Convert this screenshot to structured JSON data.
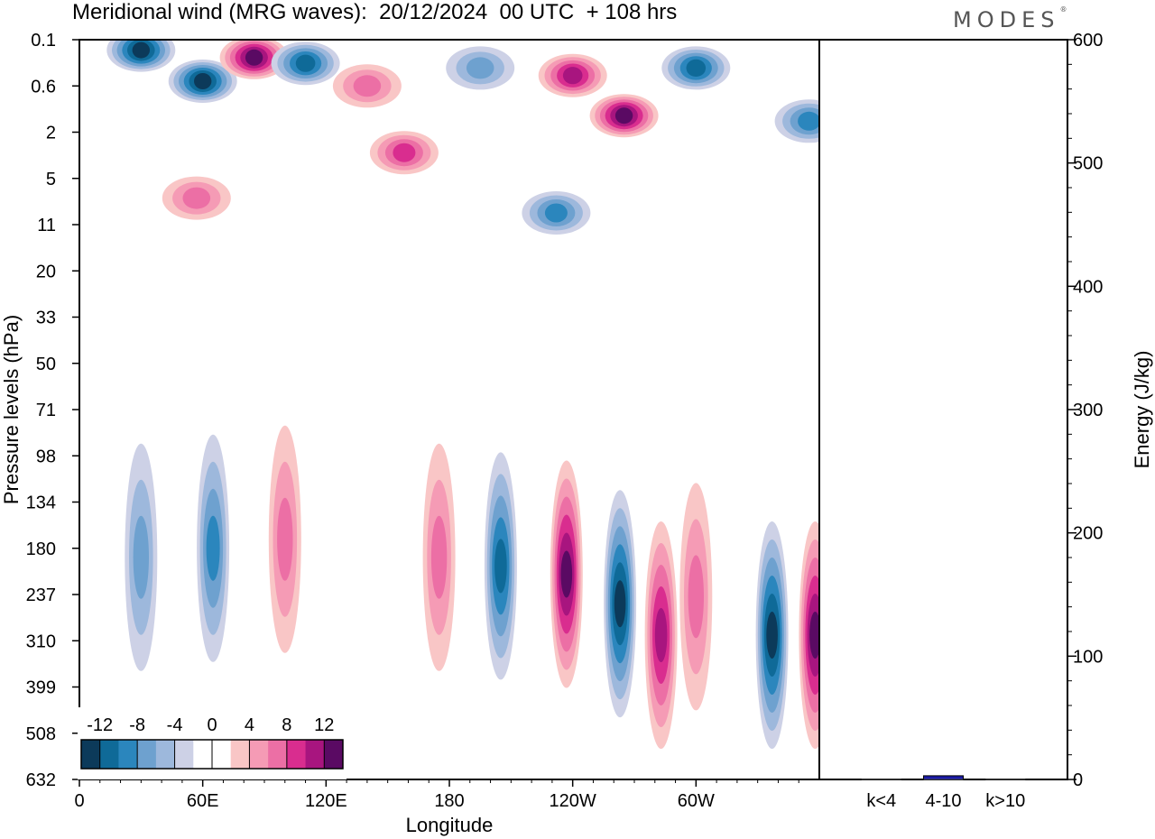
{
  "title": "Meridional wind (MRG waves):  20/12/2024  00 UTC  + 108 hrs",
  "brand": "MODES",
  "brand_mark": "®",
  "chart_data": [
    {
      "type": "heatmap",
      "title": "Meridional wind (MRG waves):  20/12/2024  00 UTC  + 108 hrs",
      "xlabel": "Longitude",
      "ylabel": "Pressure levels (hPa)",
      "x_ticks": [
        "0",
        "60E",
        "120E",
        "180",
        "120W",
        "60W"
      ],
      "y_ticks": [
        "0.1",
        "0.6",
        "2",
        "5",
        "11",
        "20",
        "33",
        "50",
        "71",
        "98",
        "134",
        "180",
        "237",
        "310",
        "399",
        "508",
        "632"
      ],
      "colorbar": {
        "labels": [
          "-12",
          "-8",
          "-4",
          "0",
          "4",
          "8",
          "12"
        ],
        "colors": [
          "#0c3a5a",
          "#0f6a98",
          "#2b86bd",
          "#6ea1cf",
          "#9db8dc",
          "#cdd1e6",
          "#ffffff",
          "#ffffff",
          "#f9c6c6",
          "#f59bb5",
          "#ec6fa5",
          "#d92d8f",
          "#a8157f",
          "#5a0a63"
        ]
      },
      "features": [
        {
          "lon": 30,
          "level": 0.15,
          "value": -12
        },
        {
          "lon": 60,
          "level": 0.5,
          "value": -11
        },
        {
          "lon": 85,
          "level": 0.2,
          "value": 14
        },
        {
          "lon": 110,
          "level": 0.25,
          "value": -9
        },
        {
          "lon": 140,
          "level": 0.6,
          "value": 6
        },
        {
          "lon": 158,
          "level": 3,
          "value": 7
        },
        {
          "lon": 195,
          "level": 0.3,
          "value": -5
        },
        {
          "lon": 240,
          "level": 0.4,
          "value": 10
        },
        {
          "lon": 265,
          "level": 1.3,
          "value": 11
        },
        {
          "lon": 300,
          "level": 0.3,
          "value": -10
        },
        {
          "lon": 355,
          "level": 1.5,
          "value": -7
        },
        {
          "lon": 57,
          "level": 7,
          "value": 5
        },
        {
          "lon": 232,
          "level": 9,
          "value": -7
        },
        {
          "lon": 30,
          "level": 190,
          "value": -5
        },
        {
          "lon": 65,
          "level": 180,
          "value": -7
        },
        {
          "lon": 100,
          "level": 170,
          "value": 6
        },
        {
          "lon": 175,
          "level": 190,
          "value": 5
        },
        {
          "lon": 205,
          "level": 200,
          "value": -9
        },
        {
          "lon": 237,
          "level": 210,
          "value": 14
        },
        {
          "lon": 263,
          "level": 250,
          "value": -12
        },
        {
          "lon": 283,
          "level": 300,
          "value": 10
        },
        {
          "lon": 300,
          "level": 240,
          "value": 5
        },
        {
          "lon": 337,
          "level": 300,
          "value": -14
        },
        {
          "lon": 358,
          "level": 300,
          "value": 12
        }
      ]
    },
    {
      "type": "bar",
      "ylabel": "Energy (J/kg)",
      "categories": [
        "k<4",
        "4-10",
        "k>10"
      ],
      "values": [
        0,
        3,
        0
      ],
      "ylim": [
        0,
        600
      ],
      "y_ticks": [
        "0",
        "100",
        "200",
        "300",
        "400",
        "500",
        "600"
      ],
      "bar_color": "#1a1aa6"
    }
  ]
}
